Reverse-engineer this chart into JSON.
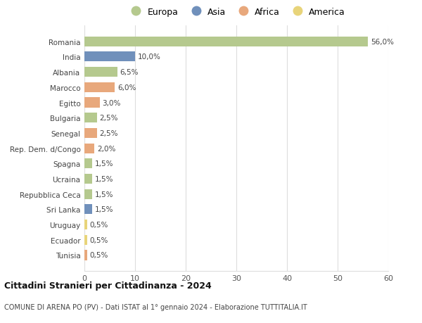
{
  "categories": [
    "Romania",
    "India",
    "Albania",
    "Marocco",
    "Egitto",
    "Bulgaria",
    "Senegal",
    "Rep. Dem. d/Congo",
    "Spagna",
    "Ucraina",
    "Repubblica Ceca",
    "Sri Lanka",
    "Uruguay",
    "Ecuador",
    "Tunisia"
  ],
  "values": [
    56.0,
    10.0,
    6.5,
    6.0,
    3.0,
    2.5,
    2.5,
    2.0,
    1.5,
    1.5,
    1.5,
    1.5,
    0.5,
    0.5,
    0.5
  ],
  "labels": [
    "56,0%",
    "10,0%",
    "6,5%",
    "6,0%",
    "3,0%",
    "2,5%",
    "2,5%",
    "2,0%",
    "1,5%",
    "1,5%",
    "1,5%",
    "1,5%",
    "0,5%",
    "0,5%",
    "0,5%"
  ],
  "continents": [
    "Europa",
    "Asia",
    "Europa",
    "Africa",
    "Africa",
    "Europa",
    "Africa",
    "Africa",
    "Europa",
    "Europa",
    "Europa",
    "Asia",
    "America",
    "America",
    "Africa"
  ],
  "colors": {
    "Europa": "#b5c98e",
    "Asia": "#7090bb",
    "Africa": "#e8a87c",
    "America": "#e8d47a"
  },
  "legend_order": [
    "Europa",
    "Asia",
    "Africa",
    "America"
  ],
  "title": "Cittadini Stranieri per Cittadinanza - 2024",
  "subtitle": "COMUNE DI ARENA PO (PV) - Dati ISTAT al 1° gennaio 2024 - Elaborazione TUTTITALIA.IT",
  "xlim": [
    0,
    60
  ],
  "xticks": [
    0,
    10,
    20,
    30,
    40,
    50,
    60
  ],
  "background_color": "#ffffff",
  "grid_color": "#dddddd",
  "bar_height": 0.65
}
